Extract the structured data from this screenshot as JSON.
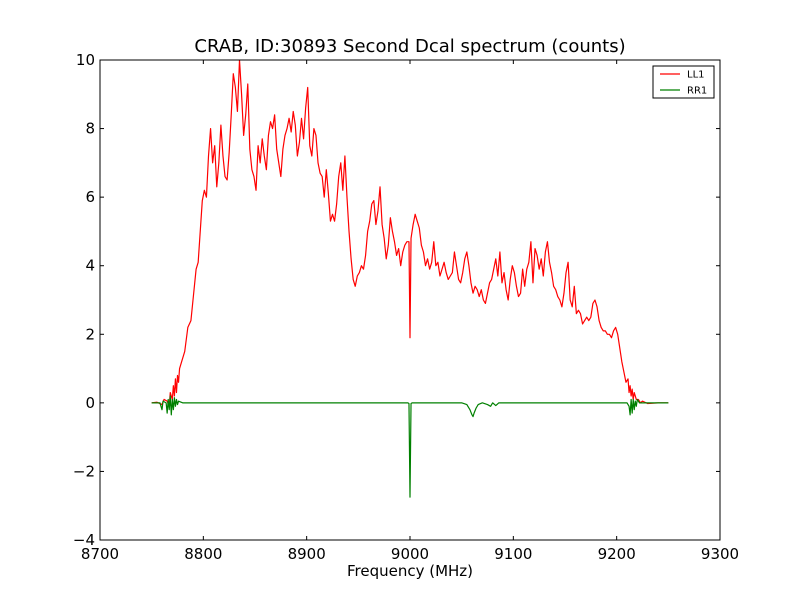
{
  "chart_data": {
    "type": "line",
    "title": "CRAB, ID:30893 Second Dcal spectrum (counts)",
    "xlabel": "Frequency (MHz)",
    "ylabel": "",
    "xlim": [
      8700,
      9300
    ],
    "ylim": [
      -4,
      10
    ],
    "xticks": [
      "8700",
      "8800",
      "8900",
      "9000",
      "9100",
      "9200",
      "9300"
    ],
    "yticks": [
      "−4",
      "−2",
      "0",
      "2",
      "4",
      "6",
      "8",
      "10"
    ],
    "grid": false,
    "legend_position": "top-right",
    "series": [
      {
        "name": "LL1",
        "color": "#ff0000",
        "points": [
          [
            8750,
            0.0
          ],
          [
            8755,
            0.02
          ],
          [
            8760,
            -0.05
          ],
          [
            8762,
            0.1
          ],
          [
            8765,
            0.05
          ],
          [
            8767,
            -0.1
          ],
          [
            8768,
            0.3
          ],
          [
            8770,
            0.1
          ],
          [
            8771,
            0.5
          ],
          [
            8772,
            0.2
          ],
          [
            8773,
            0.7
          ],
          [
            8774,
            0.3
          ],
          [
            8775,
            0.8
          ],
          [
            8776,
            0.6
          ],
          [
            8777,
            1.0
          ],
          [
            8779,
            1.2
          ],
          [
            8782,
            1.5
          ],
          [
            8785,
            2.2
          ],
          [
            8788,
            2.4
          ],
          [
            8790,
            3.0
          ],
          [
            8793,
            3.9
          ],
          [
            8795,
            4.1
          ],
          [
            8797,
            5.0
          ],
          [
            8799,
            5.9
          ],
          [
            8801,
            6.2
          ],
          [
            8803,
            6.0
          ],
          [
            8805,
            7.2
          ],
          [
            8807,
            8.0
          ],
          [
            8809,
            7.0
          ],
          [
            8811,
            7.5
          ],
          [
            8813,
            6.3
          ],
          [
            8815,
            7.0
          ],
          [
            8817,
            8.1
          ],
          [
            8819,
            7.2
          ],
          [
            8821,
            6.6
          ],
          [
            8823,
            6.5
          ],
          [
            8825,
            7.3
          ],
          [
            8827,
            8.4
          ],
          [
            8829,
            9.6
          ],
          [
            8831,
            9.2
          ],
          [
            8833,
            8.5
          ],
          [
            8835,
            10.0
          ],
          [
            8837,
            9.0
          ],
          [
            8839,
            7.8
          ],
          [
            8841,
            8.4
          ],
          [
            8843,
            9.3
          ],
          [
            8845,
            7.4
          ],
          [
            8847,
            6.8
          ],
          [
            8849,
            6.6
          ],
          [
            8851,
            6.2
          ],
          [
            8853,
            7.5
          ],
          [
            8855,
            7.0
          ],
          [
            8857,
            7.7
          ],
          [
            8859,
            7.2
          ],
          [
            8861,
            6.8
          ],
          [
            8863,
            7.8
          ],
          [
            8865,
            8.2
          ],
          [
            8867,
            8.0
          ],
          [
            8869,
            8.4
          ],
          [
            8871,
            7.4
          ],
          [
            8873,
            7.0
          ],
          [
            8875,
            6.6
          ],
          [
            8877,
            7.4
          ],
          [
            8879,
            7.8
          ],
          [
            8881,
            8.0
          ],
          [
            8883,
            8.3
          ],
          [
            8885,
            7.9
          ],
          [
            8887,
            8.5
          ],
          [
            8889,
            8.1
          ],
          [
            8891,
            7.2
          ],
          [
            8893,
            7.6
          ],
          [
            8895,
            8.3
          ],
          [
            8897,
            7.7
          ],
          [
            8899,
            8.6
          ],
          [
            8901,
            9.2
          ],
          [
            8903,
            7.5
          ],
          [
            8905,
            7.2
          ],
          [
            8907,
            8.0
          ],
          [
            8909,
            7.8
          ],
          [
            8911,
            7.0
          ],
          [
            8913,
            6.7
          ],
          [
            8915,
            6.6
          ],
          [
            8917,
            6.0
          ],
          [
            8919,
            6.8
          ],
          [
            8921,
            6.1
          ],
          [
            8923,
            5.3
          ],
          [
            8925,
            5.5
          ],
          [
            8927,
            5.3
          ],
          [
            8929,
            5.8
          ],
          [
            8931,
            6.6
          ],
          [
            8933,
            7.0
          ],
          [
            8935,
            6.2
          ],
          [
            8937,
            7.2
          ],
          [
            8939,
            6.0
          ],
          [
            8941,
            5.0
          ],
          [
            8943,
            4.2
          ],
          [
            8945,
            3.6
          ],
          [
            8947,
            3.4
          ],
          [
            8949,
            3.7
          ],
          [
            8951,
            3.8
          ],
          [
            8953,
            4.0
          ],
          [
            8955,
            3.9
          ],
          [
            8957,
            4.3
          ],
          [
            8959,
            5.0
          ],
          [
            8961,
            5.3
          ],
          [
            8963,
            5.8
          ],
          [
            8965,
            5.9
          ],
          [
            8967,
            5.2
          ],
          [
            8969,
            5.6
          ],
          [
            8971,
            6.3
          ],
          [
            8973,
            5.2
          ],
          [
            8975,
            4.8
          ],
          [
            8977,
            4.2
          ],
          [
            8979,
            4.6
          ],
          [
            8981,
            5.4
          ],
          [
            8983,
            5.0
          ],
          [
            8985,
            4.7
          ],
          [
            8987,
            4.3
          ],
          [
            8989,
            4.5
          ],
          [
            8991,
            4.0
          ],
          [
            8993,
            4.4
          ],
          [
            8995,
            4.6
          ],
          [
            8997,
            4.7
          ],
          [
            8999,
            4.7
          ],
          [
            9000,
            1.9
          ],
          [
            9001,
            4.8
          ],
          [
            9003,
            5.2
          ],
          [
            9005,
            5.5
          ],
          [
            9007,
            5.3
          ],
          [
            9009,
            5.1
          ],
          [
            9011,
            4.6
          ],
          [
            9013,
            4.4
          ],
          [
            9015,
            4.0
          ],
          [
            9017,
            4.2
          ],
          [
            9019,
            3.9
          ],
          [
            9021,
            4.1
          ],
          [
            9023,
            4.7
          ],
          [
            9025,
            4.0
          ],
          [
            9027,
            4.1
          ],
          [
            9029,
            3.7
          ],
          [
            9031,
            3.9
          ],
          [
            9033,
            4.1
          ],
          [
            9035,
            3.8
          ],
          [
            9037,
            3.6
          ],
          [
            9039,
            3.7
          ],
          [
            9041,
            3.8
          ],
          [
            9043,
            4.4
          ],
          [
            9045,
            4.0
          ],
          [
            9047,
            3.6
          ],
          [
            9049,
            3.5
          ],
          [
            9051,
            3.8
          ],
          [
            9053,
            4.2
          ],
          [
            9055,
            4.4
          ],
          [
            9057,
            4.0
          ],
          [
            9059,
            3.5
          ],
          [
            9061,
            3.2
          ],
          [
            9063,
            3.4
          ],
          [
            9065,
            3.3
          ],
          [
            9067,
            3.1
          ],
          [
            9069,
            3.3
          ],
          [
            9071,
            3.0
          ],
          [
            9073,
            2.9
          ],
          [
            9075,
            3.2
          ],
          [
            9077,
            3.5
          ],
          [
            9079,
            3.6
          ],
          [
            9081,
            3.9
          ],
          [
            9083,
            4.2
          ],
          [
            9085,
            3.7
          ],
          [
            9087,
            4.4
          ],
          [
            9089,
            3.5
          ],
          [
            9091,
            3.8
          ],
          [
            9093,
            3.3
          ],
          [
            9095,
            3.0
          ],
          [
            9097,
            3.6
          ],
          [
            9099,
            4.0
          ],
          [
            9101,
            3.8
          ],
          [
            9103,
            3.4
          ],
          [
            9105,
            3.1
          ],
          [
            9107,
            3.2
          ],
          [
            9109,
            3.9
          ],
          [
            9111,
            3.4
          ],
          [
            9113,
            3.9
          ],
          [
            9115,
            4.1
          ],
          [
            9117,
            4.7
          ],
          [
            9119,
            3.5
          ],
          [
            9121,
            4.5
          ],
          [
            9123,
            4.3
          ],
          [
            9125,
            3.9
          ],
          [
            9127,
            4.2
          ],
          [
            9129,
            3.7
          ],
          [
            9131,
            4.4
          ],
          [
            9133,
            4.7
          ],
          [
            9135,
            4.1
          ],
          [
            9137,
            3.8
          ],
          [
            9139,
            3.4
          ],
          [
            9141,
            3.3
          ],
          [
            9143,
            3.1
          ],
          [
            9145,
            3.0
          ],
          [
            9147,
            2.8
          ],
          [
            9149,
            3.2
          ],
          [
            9151,
            3.8
          ],
          [
            9153,
            4.1
          ],
          [
            9155,
            3.0
          ],
          [
            9157,
            2.8
          ],
          [
            9159,
            3.4
          ],
          [
            9161,
            2.6
          ],
          [
            9163,
            2.7
          ],
          [
            9165,
            2.6
          ],
          [
            9167,
            2.3
          ],
          [
            9169,
            2.4
          ],
          [
            9171,
            2.5
          ],
          [
            9173,
            2.4
          ],
          [
            9175,
            2.5
          ],
          [
            9177,
            2.9
          ],
          [
            9179,
            3.0
          ],
          [
            9181,
            2.8
          ],
          [
            9183,
            2.4
          ],
          [
            9185,
            2.2
          ],
          [
            9187,
            2.1
          ],
          [
            9189,
            2.1
          ],
          [
            9191,
            2.0
          ],
          [
            9193,
            2.0
          ],
          [
            9195,
            1.9
          ],
          [
            9197,
            2.1
          ],
          [
            9199,
            2.2
          ],
          [
            9201,
            2.0
          ],
          [
            9203,
            1.6
          ],
          [
            9205,
            1.2
          ],
          [
            9207,
            0.9
          ],
          [
            9209,
            0.6
          ],
          [
            9211,
            0.7
          ],
          [
            9212,
            0.3
          ],
          [
            9213,
            0.5
          ],
          [
            9214,
            0.2
          ],
          [
            9215,
            0.4
          ],
          [
            9216,
            0.1
          ],
          [
            9217,
            0.3
          ],
          [
            9219,
            0.1
          ],
          [
            9221,
            0.1
          ],
          [
            9223,
            0.0
          ],
          [
            9225,
            0.05
          ],
          [
            9230,
            -0.02
          ],
          [
            9240,
            0.0
          ],
          [
            9250,
            0.0
          ]
        ]
      },
      {
        "name": "RR1",
        "color": "#008000",
        "points": [
          [
            8750,
            0.0
          ],
          [
            8758,
            0.0
          ],
          [
            8760,
            -0.2
          ],
          [
            8761,
            0.05
          ],
          [
            8764,
            0.0
          ],
          [
            8765,
            -0.3
          ],
          [
            8766,
            0.1
          ],
          [
            8767,
            -0.2
          ],
          [
            8768,
            0.2
          ],
          [
            8769,
            -0.35
          ],
          [
            8770,
            0.1
          ],
          [
            8771,
            -0.2
          ],
          [
            8772,
            0.15
          ],
          [
            8773,
            -0.1
          ],
          [
            8774,
            0.1
          ],
          [
            8775,
            -0.05
          ],
          [
            8776,
            0.05
          ],
          [
            8780,
            0.0
          ],
          [
            8800,
            0.0
          ],
          [
            8850,
            0.0
          ],
          [
            8900,
            0.0
          ],
          [
            8950,
            0.0
          ],
          [
            8998,
            0.0
          ],
          [
            8999,
            -0.02
          ],
          [
            9000,
            -2.75
          ],
          [
            9001,
            -0.02
          ],
          [
            9002,
            0.0
          ],
          [
            9050,
            0.0
          ],
          [
            9055,
            -0.05
          ],
          [
            9058,
            -0.2
          ],
          [
            9060,
            -0.35
          ],
          [
            9061,
            -0.4
          ],
          [
            9062,
            -0.3
          ],
          [
            9064,
            -0.15
          ],
          [
            9066,
            -0.05
          ],
          [
            9070,
            0.0
          ],
          [
            9075,
            -0.05
          ],
          [
            9078,
            -0.1
          ],
          [
            9080,
            0.0
          ],
          [
            9083,
            -0.08
          ],
          [
            9086,
            0.0
          ],
          [
            9100,
            0.0
          ],
          [
            9150,
            0.0
          ],
          [
            9200,
            0.0
          ],
          [
            9210,
            0.0
          ],
          [
            9212,
            -0.1
          ],
          [
            9213,
            -0.35
          ],
          [
            9214,
            0.1
          ],
          [
            9215,
            -0.3
          ],
          [
            9216,
            0.1
          ],
          [
            9217,
            -0.2
          ],
          [
            9218,
            0.05
          ],
          [
            9219,
            -0.1
          ],
          [
            9220,
            0.1
          ],
          [
            9222,
            0.0
          ],
          [
            9250,
            0.0
          ]
        ]
      }
    ]
  }
}
